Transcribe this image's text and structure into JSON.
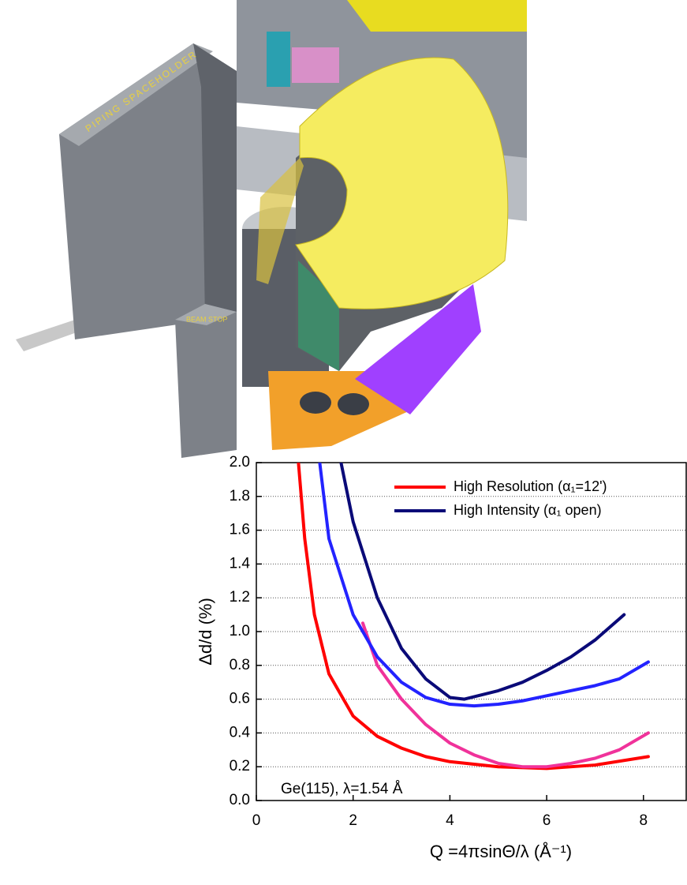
{
  "figure_labels": [
    "PIPING SPACEHOLDER",
    "BEAM STOP"
  ],
  "chart_data": {
    "type": "line",
    "xlabel": "Q =4πsinΘ/λ (Å⁻¹)",
    "ylabel": "Δd/d (%)",
    "annotation": "Ge(115), λ=1.54 Å",
    "xlim": [
      0,
      8.9
    ],
    "ylim": [
      0,
      2
    ],
    "xticks": [
      0,
      2,
      4,
      6,
      8
    ],
    "yticks": [
      {
        "value": 0,
        "label": "0.0"
      },
      0.2,
      0.4,
      0.6,
      0.8,
      {
        "value": 1,
        "label": "1.0"
      },
      1.2,
      1.4,
      1.6,
      1.8,
      {
        "value": 2,
        "label": "2.0"
      }
    ],
    "grid": true,
    "legend": "upper right",
    "series": [
      {
        "name": "High Resolution (α₁=12')",
        "color": "#ff0000",
        "x": [
          0.87,
          1.0,
          1.2,
          1.5,
          2.0,
          2.5,
          3.0,
          3.5,
          4.0,
          5.0,
          6.0,
          7.0,
          8.1
        ],
        "values": [
          2.0,
          1.55,
          1.1,
          0.75,
          0.5,
          0.38,
          0.31,
          0.26,
          0.23,
          0.2,
          0.19,
          0.21,
          0.26
        ]
      },
      {
        "color": "#f0329a",
        "x": [
          2.2,
          2.5,
          3.0,
          3.5,
          4.0,
          4.5,
          5.0,
          5.5,
          6.0,
          6.5,
          7.0,
          7.5,
          8.1
        ],
        "values": [
          1.05,
          0.8,
          0.6,
          0.45,
          0.34,
          0.27,
          0.22,
          0.2,
          0.2,
          0.22,
          0.25,
          0.3,
          0.4
        ]
      },
      {
        "color": "#2323ff",
        "x": [
          1.31,
          1.5,
          2.0,
          2.5,
          3.0,
          3.5,
          4.0,
          4.5,
          5.0,
          5.5,
          6.0,
          7.0,
          7.5,
          8.1
        ],
        "values": [
          2.0,
          1.55,
          1.1,
          0.85,
          0.7,
          0.61,
          0.57,
          0.56,
          0.57,
          0.59,
          0.62,
          0.68,
          0.72,
          0.82
        ]
      },
      {
        "name": "High Intensity (α₁ open)",
        "color": "#0a0a78",
        "x": [
          1.75,
          2.0,
          2.5,
          3.0,
          3.5,
          4.0,
          4.3,
          5.0,
          5.5,
          6.0,
          6.5,
          7.0,
          7.6
        ],
        "values": [
          2.0,
          1.65,
          1.2,
          0.9,
          0.72,
          0.61,
          0.6,
          0.65,
          0.7,
          0.77,
          0.85,
          0.95,
          1.1
        ]
      }
    ]
  }
}
